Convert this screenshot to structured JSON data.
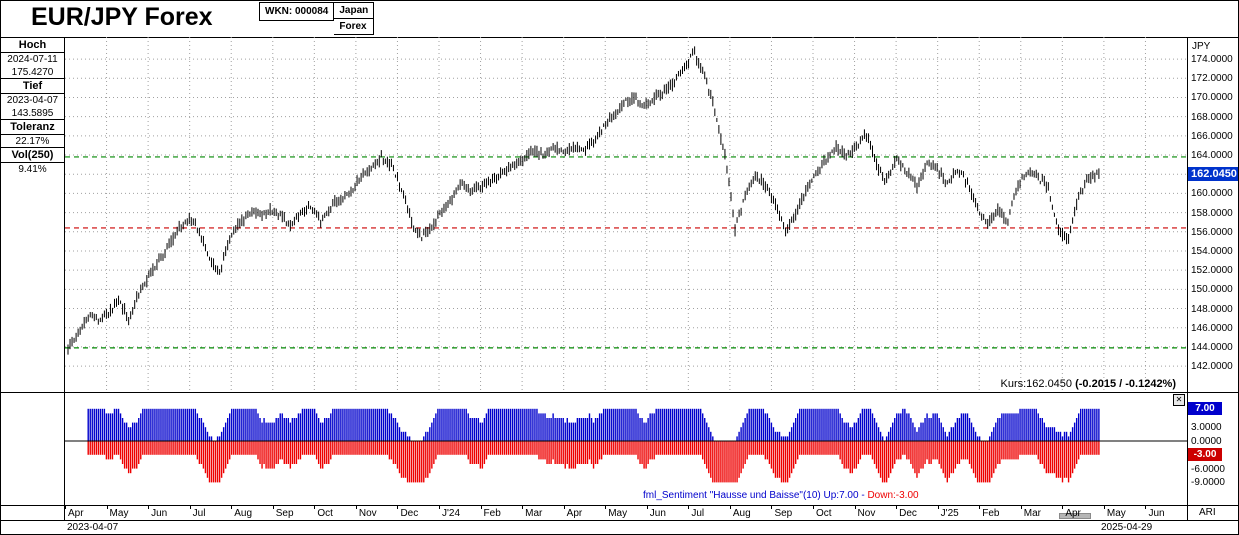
{
  "window": {
    "title": "EUR/JPY Forex",
    "wkn": "WKN: 000084",
    "market_line1": "Japan",
    "market_line2": "Forex"
  },
  "icons": {
    "close": "✕"
  },
  "sidebar": {
    "stats": [
      {
        "label": "Hoch",
        "values": [
          "2024-07-11",
          "175.4270"
        ]
      },
      {
        "label": "Tief",
        "values": [
          "2023-04-07",
          "143.5895"
        ]
      },
      {
        "label": "Toleranz",
        "values": [
          "22.17%"
        ]
      },
      {
        "label": "Vol(250)",
        "values": [
          "9.41%"
        ]
      }
    ]
  },
  "price_axis": {
    "unit": "JPY",
    "ticks": [
      "174.0000",
      "172.0000",
      "170.0000",
      "168.0000",
      "166.0000",
      "164.0000",
      "162.0000",
      "160.0000",
      "158.0000",
      "156.0000",
      "154.0000",
      "152.0000",
      "150.0000",
      "148.0000",
      "146.0000",
      "144.0000",
      "142.0000"
    ],
    "last_price_badge": "162.0450"
  },
  "quote_line": {
    "prefix": "Kurs:162.0450 ",
    "change": "(-0.2015 / -0.1242%)"
  },
  "sentiment_axis": {
    "up_badge": "7.00",
    "down_badge": "-3.00",
    "ticks": [
      "3.0000",
      "0.0000",
      "-6.0000",
      "-9.0000"
    ]
  },
  "sentiment_legend": {
    "blue": "fml_Sentiment \"Hausse und Baisse\"(10) Up:7.00 - ",
    "red": "Down:-3.00"
  },
  "x_axis": {
    "months": [
      "Apr",
      "May",
      "Jun",
      "Jul",
      "Aug",
      "Sep",
      "Oct",
      "Nov",
      "Dec",
      "J'24",
      "Feb",
      "Mar",
      "Apr",
      "May",
      "Jun",
      "Jul",
      "Aug",
      "Sep",
      "Oct",
      "Nov",
      "Dec",
      "J'25",
      "Feb",
      "Mar",
      "Apr",
      "May",
      "Jun"
    ],
    "start_date": "2023-04-07",
    "end_date": "2025-04-29"
  },
  "footer": {
    "right_label": "ARI"
  },
  "colors": {
    "price_bar": "#000000",
    "up_bar": "#0000cc",
    "down_bar": "#ee0000",
    "badge_bg": "#0033cc",
    "green_line": "#008800",
    "red_line": "#cc0000",
    "grid": "#a0a0a0"
  },
  "chart_data": [
    {
      "type": "ohlc-bar",
      "title": "EUR/JPY Forex",
      "ylabel": "JPY",
      "ylim": [
        139.3,
        176.3
      ],
      "ytick_step": 2,
      "x_total_months": 27,
      "x_extent_months": 25,
      "weekly_closes": [
        143.8,
        145.2,
        147.4,
        146.8,
        147.3,
        148.9,
        147.0,
        149.6,
        151.3,
        153.0,
        154.6,
        156.4,
        157.4,
        156.0,
        153.2,
        151.8,
        155.3,
        156.9,
        158.1,
        157.6,
        158.3,
        157.8,
        156.5,
        157.9,
        158.6,
        157.0,
        158.7,
        159.5,
        160.2,
        161.9,
        162.6,
        163.7,
        163.1,
        160.3,
        157.0,
        155.4,
        156.6,
        158.1,
        159.6,
        160.9,
        160.3,
        160.8,
        161.6,
        162.3,
        162.8,
        163.4,
        164.6,
        163.9,
        164.8,
        164.3,
        165.0,
        164.6,
        165.3,
        167.0,
        168.3,
        169.6,
        169.9,
        168.9,
        169.8,
        170.8,
        171.6,
        173.2,
        174.7,
        172.2,
        168.6,
        164.0,
        156.3,
        159.8,
        161.9,
        160.9,
        158.9,
        156.1,
        157.9,
        160.3,
        161.9,
        163.4,
        164.9,
        163.7,
        164.9,
        166.2,
        162.9,
        161.3,
        163.6,
        162.2,
        160.9,
        163.1,
        162.6,
        160.9,
        162.4,
        161.1,
        158.3,
        156.9,
        158.4,
        157.2,
        160.9,
        162.3,
        161.6,
        160.5,
        156.2,
        155.3,
        159.9,
        161.5,
        162.0
      ],
      "high": {
        "date": "2024-07-11",
        "value": 175.427
      },
      "low": {
        "date": "2023-04-07",
        "value": 143.5895
      },
      "last": {
        "date": "2025-04-29",
        "value": 162.045,
        "change_abs": -0.2015,
        "change_pct": -0.1242
      },
      "green_dashed_levels": [
        163.8,
        143.9
      ],
      "red_dashed_level": 156.4,
      "grid": true
    },
    {
      "type": "bar",
      "name": "fml_Sentiment \"Hausse und Baisse\"(10)",
      "period": 10,
      "up_current": 7.0,
      "down_current": -3.0,
      "ylim": [
        -14,
        10.5
      ],
      "yticks": [
        7,
        3,
        0,
        -3,
        -6,
        -9
      ],
      "up_color": "#0000cc",
      "down_color": "#ee0000",
      "derivation": "blue = count of up sessions in trailing 10 sessions (max 7 shown), red = -count of down sessions (max -9 shown); derived from weekly_closes of panel 1"
    }
  ]
}
